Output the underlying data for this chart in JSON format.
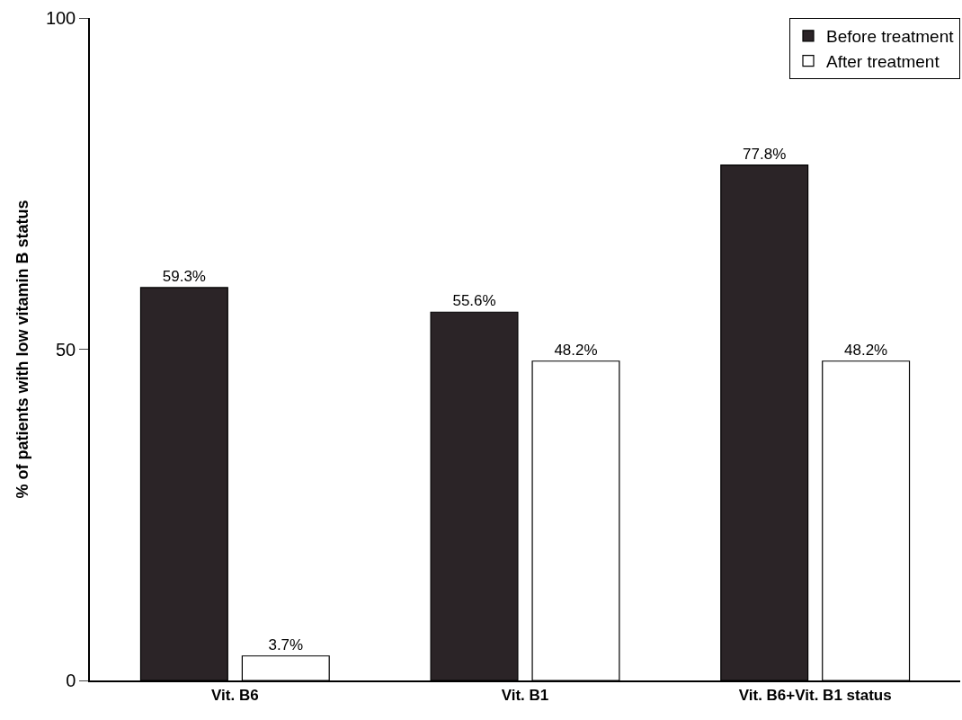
{
  "chart_data": {
    "type": "bar",
    "ylabel": "% of patients with low vitamin B status",
    "categories": [
      "Vit. B6",
      "Vit. B1",
      "Vit. B6+Vit. B1 status"
    ],
    "series": [
      {
        "name": "Before treatment",
        "color": "#2b2427",
        "values": [
          59.3,
          55.6,
          77.8
        ],
        "value_labels": [
          "59.3%",
          "55.6%",
          "77.8%"
        ]
      },
      {
        "name": "After treatment",
        "color": "#ffffff",
        "values": [
          3.7,
          48.2,
          48.2
        ],
        "value_labels": [
          "3.7%",
          "48.2%",
          "48.2%"
        ]
      }
    ],
    "ylim": [
      0,
      100
    ],
    "yticks": [
      0,
      50,
      100
    ],
    "grid": false,
    "legend": "top right"
  }
}
